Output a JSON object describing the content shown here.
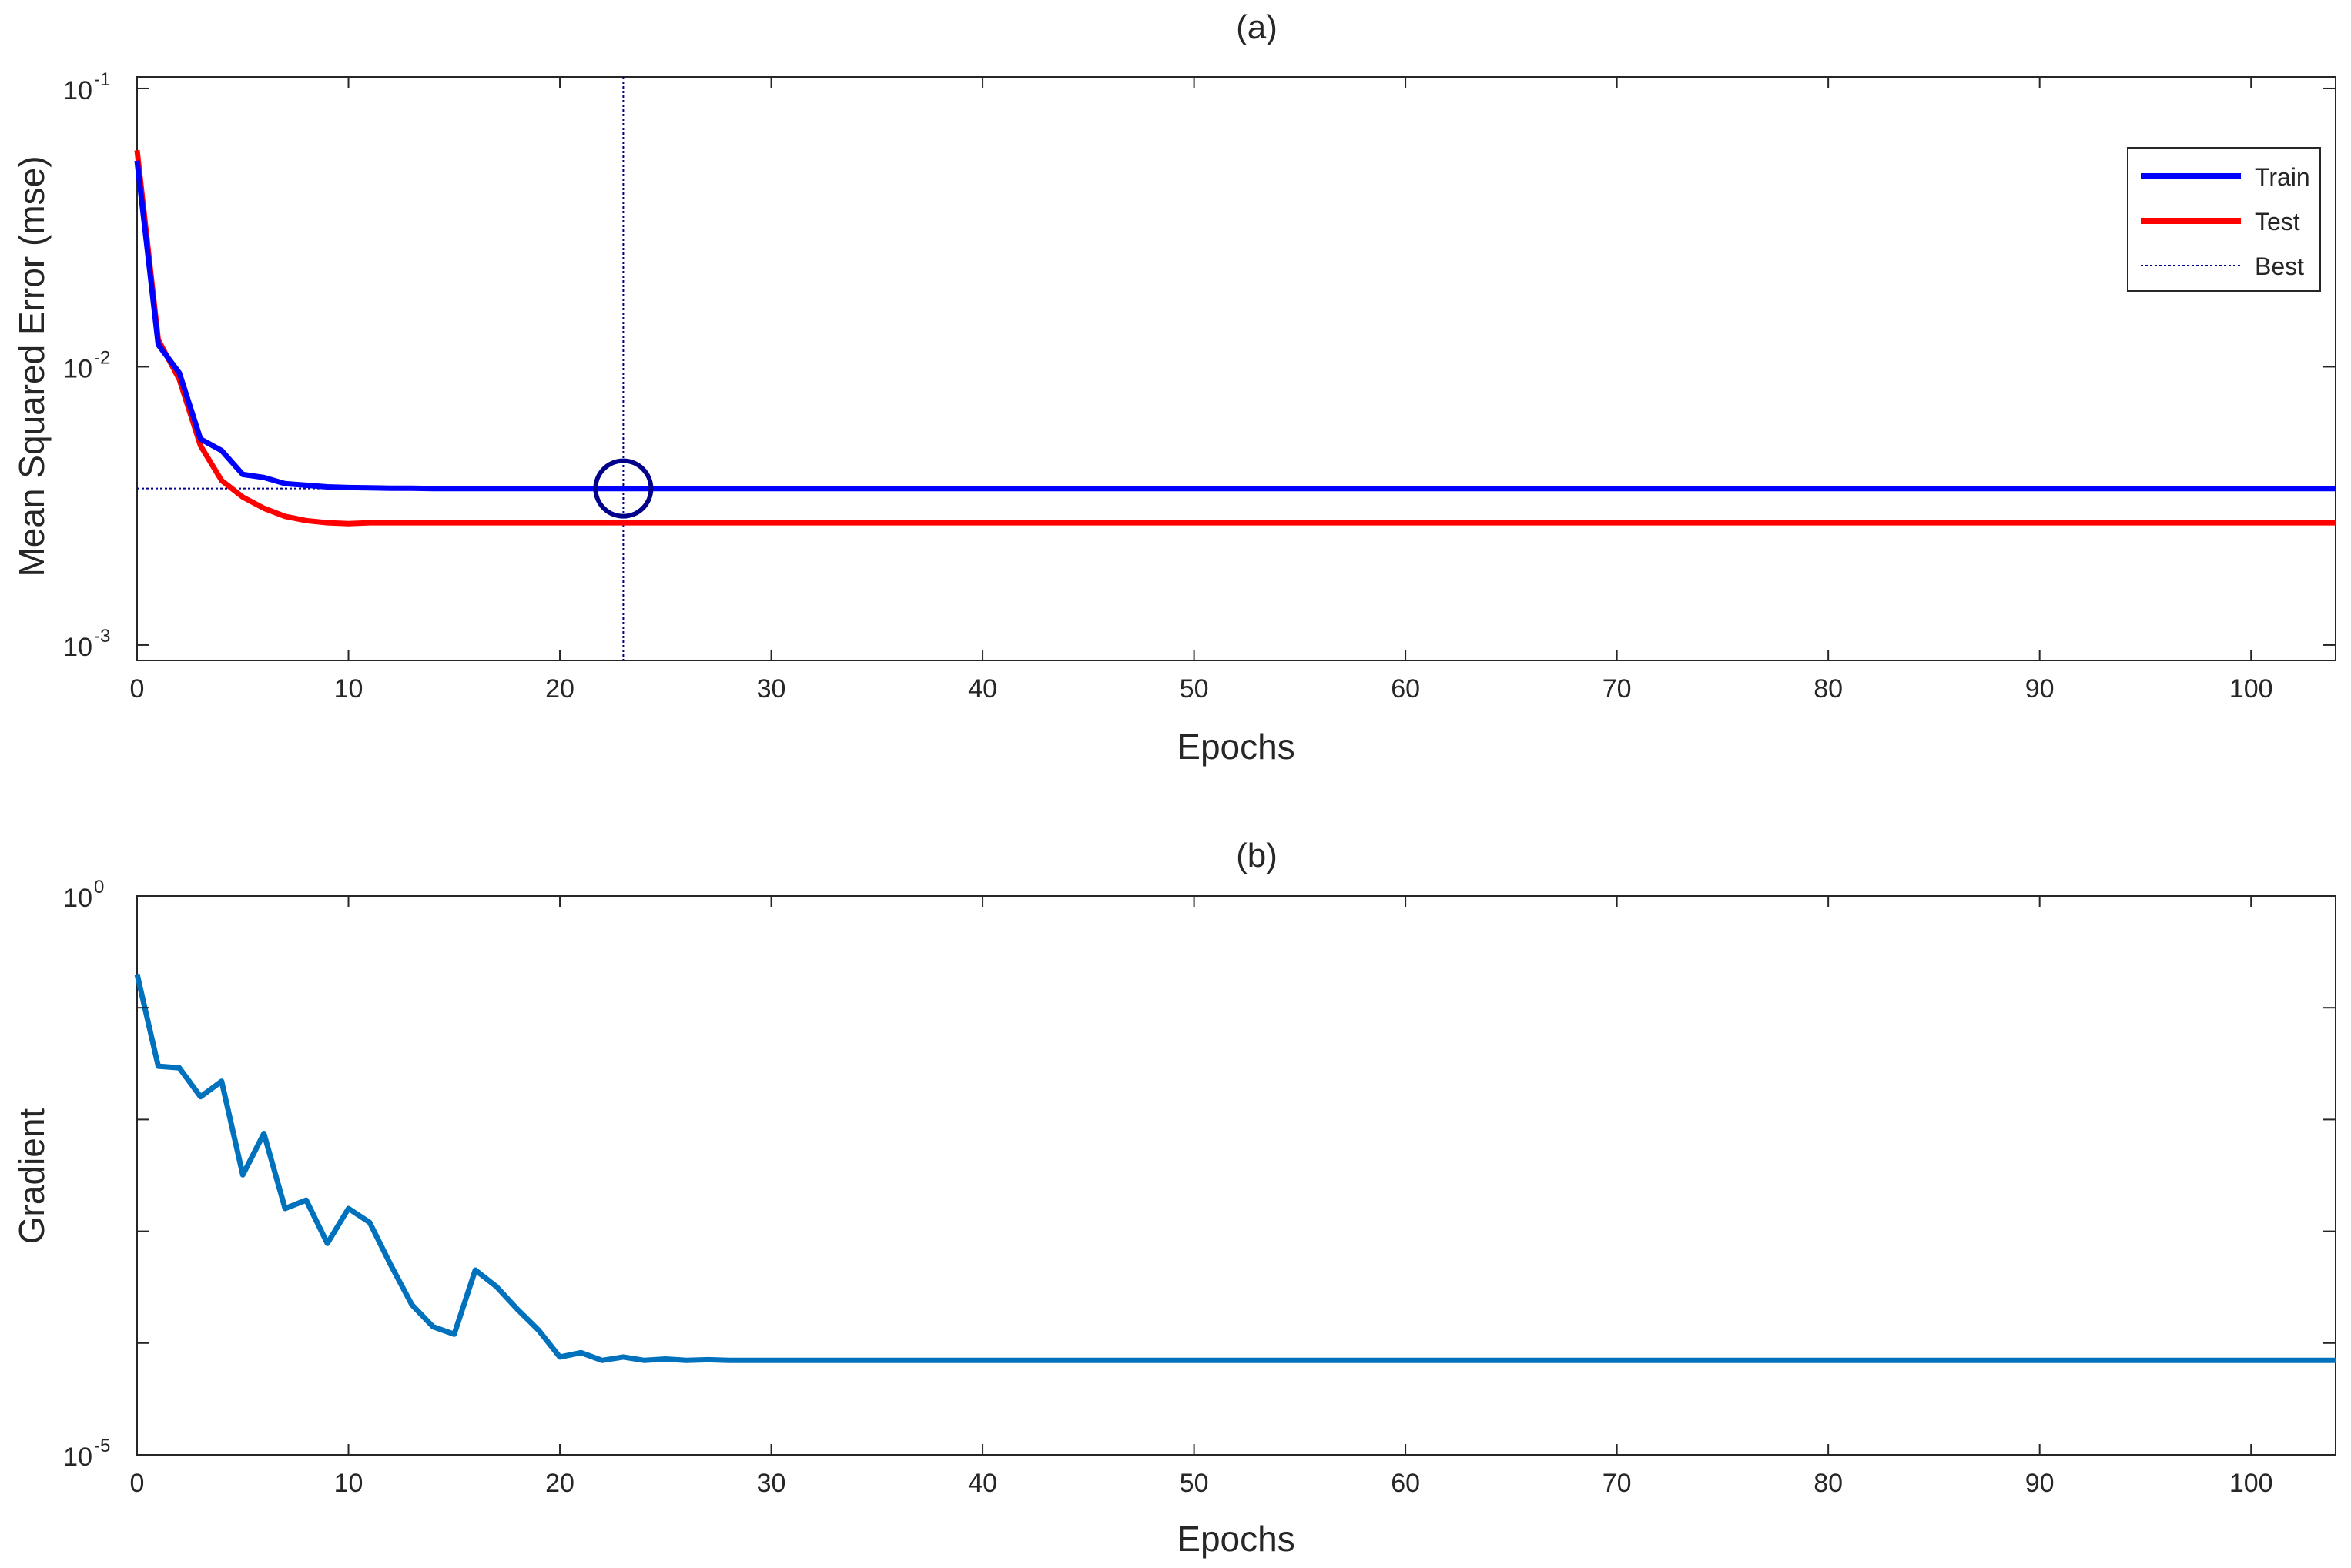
{
  "chart_data": [
    {
      "type": "line",
      "title": "(a)",
      "xlabel": "Epochs",
      "ylabel": "Mean Squared Error  (mse)",
      "xlim": [
        0,
        104
      ],
      "ylim": [
        0.00088,
        0.11
      ],
      "yscale": "log",
      "grid": false,
      "legend": "top-right",
      "x_ticks": [
        0,
        10,
        20,
        30,
        40,
        50,
        60,
        70,
        80,
        90,
        100
      ],
      "y_ticks": [
        {
          "value": 0.001,
          "base": "10",
          "exp": "-3"
        },
        {
          "value": 0.01,
          "base": "10",
          "exp": "-2"
        },
        {
          "value": 0.1,
          "base": "10",
          "exp": "-1"
        }
      ],
      "series": [
        {
          "name": "Train",
          "color": "#0000ff",
          "x": [
            0,
            1,
            2,
            3,
            4,
            5,
            6,
            7,
            8,
            9,
            10,
            11,
            12,
            13,
            14,
            15,
            16,
            18,
            20,
            23,
            30,
            40,
            50,
            60,
            70,
            80,
            90,
            104
          ],
          "values": [
            0.055,
            0.012,
            0.0095,
            0.0055,
            0.005,
            0.0041,
            0.004,
            0.0038,
            0.00375,
            0.0037,
            0.00368,
            0.00367,
            0.00366,
            0.00366,
            0.00365,
            0.00365,
            0.00365,
            0.00365,
            0.00365,
            0.00365,
            0.00365,
            0.00365,
            0.00365,
            0.00365,
            0.00365,
            0.00365,
            0.00365,
            0.00365
          ]
        },
        {
          "name": "Test",
          "color": "#ff0000",
          "x": [
            0,
            1,
            2,
            3,
            4,
            5,
            6,
            7,
            8,
            9,
            10,
            11,
            12,
            14,
            16,
            20,
            23,
            30,
            40,
            50,
            60,
            70,
            80,
            90,
            104
          ],
          "values": [
            0.06,
            0.0125,
            0.009,
            0.0052,
            0.0039,
            0.0034,
            0.0031,
            0.0029,
            0.0028,
            0.00275,
            0.00273,
            0.00275,
            0.00275,
            0.00275,
            0.00275,
            0.00275,
            0.00275,
            0.00275,
            0.00275,
            0.00275,
            0.00275,
            0.00275,
            0.00275,
            0.00275,
            0.00275
          ]
        }
      ],
      "best": {
        "name": "Best",
        "epoch": 23,
        "value": 0.00365,
        "color": "#00008b"
      }
    },
    {
      "type": "line",
      "title": "(b)",
      "xlabel": "Epochs",
      "ylabel": "Gradient",
      "xlim": [
        0,
        104
      ],
      "ylim": [
        1e-05,
        1
      ],
      "yscale": "log",
      "grid": false,
      "x_ticks": [
        0,
        10,
        20,
        30,
        40,
        50,
        60,
        70,
        80,
        90,
        100
      ],
      "y_ticks": [
        {
          "value": 1e-05,
          "base": "10",
          "exp": "-5"
        },
        {
          "value": 1,
          "base": "10",
          "exp": "0"
        }
      ],
      "y_minor_ticks": [
        0.0001,
        0.001,
        0.01,
        0.1
      ],
      "series": [
        {
          "name": "",
          "color": "#0072bd",
          "x": [
            0,
            1,
            2,
            3,
            4,
            5,
            6,
            7,
            8,
            9,
            10,
            11,
            12,
            13,
            14,
            15,
            16,
            17,
            18,
            19,
            20,
            21,
            22,
            23,
            24,
            25,
            26,
            27,
            28,
            29,
            30,
            32,
            35,
            40,
            50,
            60,
            70,
            80,
            90,
            104
          ],
          "values": [
            0.2,
            0.03,
            0.029,
            0.016,
            0.022,
            0.0032,
            0.0075,
            0.0016,
            0.0019,
            0.00078,
            0.0016,
            0.0012,
            0.0005,
            0.00022,
            0.00014,
            0.00012,
            0.00045,
            0.00032,
            0.0002,
            0.00013,
            7.5e-05,
            8.2e-05,
            7e-05,
            7.5e-05,
            7e-05,
            7.2e-05,
            7e-05,
            7.1e-05,
            7e-05,
            7e-05,
            7e-05,
            7e-05,
            7e-05,
            7e-05,
            7e-05,
            7e-05,
            7e-05,
            7e-05,
            7e-05,
            7e-05
          ]
        }
      ]
    }
  ]
}
